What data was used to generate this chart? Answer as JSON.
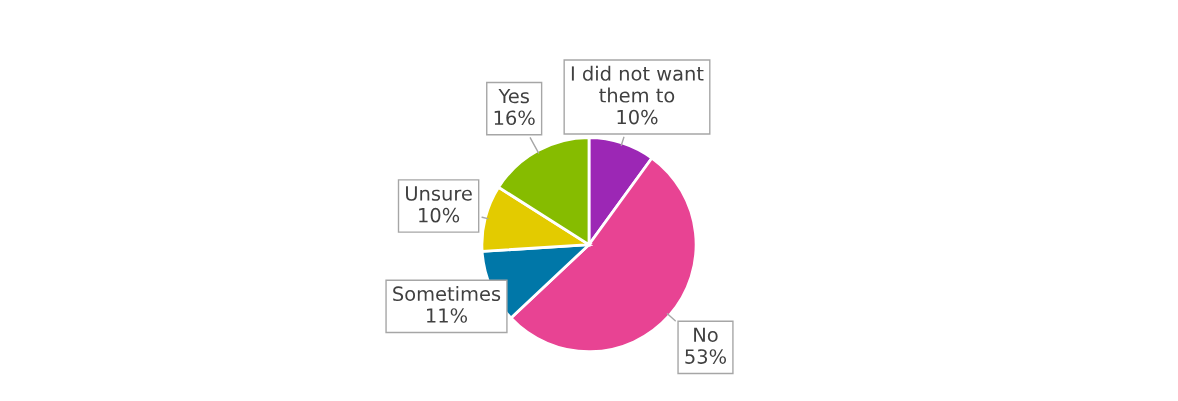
{
  "chart_data": {
    "type": "pie",
    "categories": [
      "I did not want them to",
      "No",
      "Sometimes",
      "Unsure",
      "Yes"
    ],
    "values": [
      10,
      53,
      11,
      10,
      16
    ],
    "colors": [
      "#9c27b5",
      "#e84393",
      "#0077a8",
      "#e3cb00",
      "#86bc00"
    ],
    "value_labels": [
      "10%",
      "53%",
      "11%",
      "10%",
      "16%"
    ]
  }
}
